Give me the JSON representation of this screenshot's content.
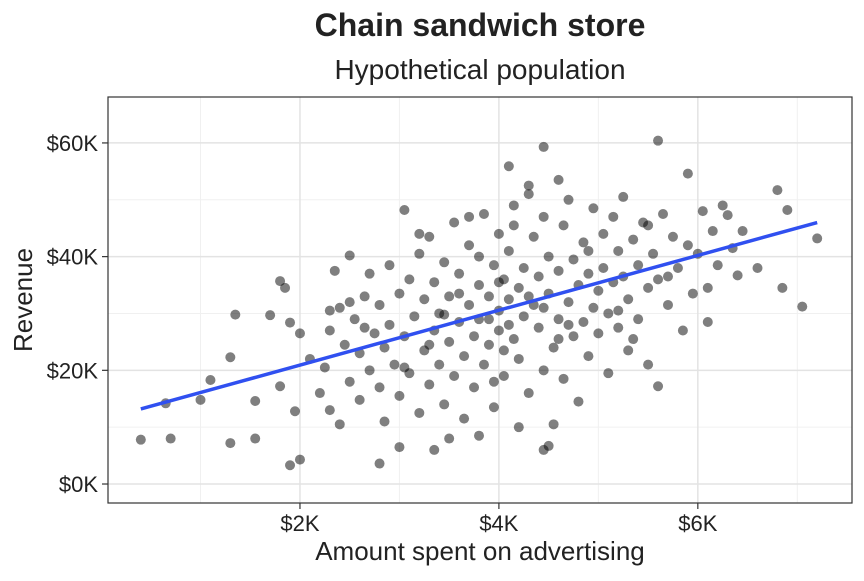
{
  "chart_data": {
    "type": "scatter",
    "title": "Chain sandwich store",
    "subtitle": "Hypothetical population",
    "xlabel": "Amount spent on advertising",
    "ylabel": "Revenue",
    "color": "#000000",
    "grid": true,
    "xlim": [
      70,
      7550
    ],
    "ylim": [
      -3340,
      68080
    ],
    "xticks": [
      {
        "value": 2000,
        "label": "$2K"
      },
      {
        "value": 4000,
        "label": "$4K"
      },
      {
        "value": 6000,
        "label": "$6K"
      }
    ],
    "yticks": [
      {
        "value": 0,
        "label": "$0K"
      },
      {
        "value": 20000,
        "label": "$20K"
      },
      {
        "value": 40000,
        "label": "$40K"
      },
      {
        "value": 60000,
        "label": "$60K"
      }
    ],
    "xminor": [
      1000,
      3000,
      5000,
      7000
    ],
    "yminor": [
      10000,
      30000,
      50000
    ],
    "x": [
      400,
      700,
      650,
      1000,
      1100,
      1300,
      1300,
      1350,
      1550,
      1550,
      1700,
      1800,
      1850,
      1800,
      1900,
      2000,
      1950,
      1900,
      5600,
      4450,
      4100,
      6800,
      5900,
      7200,
      7050,
      6900,
      4450,
      4500,
      2800,
      3000,
      3350,
      3800,
      2100,
      2200,
      2250,
      2300,
      2300,
      2350,
      2400,
      2400,
      2450,
      2500,
      2500,
      2550,
      2600,
      2600,
      2650,
      2700,
      2700,
      2750,
      2800,
      2800,
      2850,
      2850,
      2900,
      2900,
      2950,
      3000,
      3000,
      3050,
      3050,
      3100,
      3100,
      3150,
      3200,
      3200,
      3250,
      3250,
      3300,
      3300,
      3350,
      3350,
      3400,
      3400,
      3450,
      3450,
      3500,
      3500,
      3550,
      3550,
      3600,
      3600,
      3650,
      3650,
      3700,
      3700,
      3750,
      3750,
      3800,
      3800,
      3850,
      3850,
      3900,
      3900,
      3950,
      3950,
      4000,
      4000,
      4000,
      4050,
      4050,
      4100,
      4100,
      4150,
      4150,
      4200,
      4200,
      4250,
      4250,
      4300,
      4300,
      4350,
      4350,
      4400,
      4400,
      4450,
      4450,
      4500,
      4500,
      4550,
      4550,
      4600,
      4600,
      4650,
      4650,
      4700,
      4700,
      4750,
      4750,
      4800,
      4800,
      4850,
      4850,
      4900,
      4900,
      4950,
      4950,
      5000,
      5000,
      5050,
      5050,
      5100,
      5100,
      5150,
      5150,
      5200,
      5200,
      5250,
      5250,
      5300,
      5300,
      5350,
      5400,
      5400,
      5450,
      5500,
      5500,
      5550,
      5600,
      5600,
      5650,
      5700,
      5750,
      5800,
      5850,
      5900,
      5950,
      6000,
      6050,
      6100,
      6150,
      6200,
      6250,
      6300,
      6350,
      6400,
      6450,
      6600,
      6850,
      6100,
      5500,
      4300,
      4600,
      3700,
      3200,
      2300,
      2000,
      2500,
      3500,
      4200,
      3900,
      4100,
      4300,
      4000,
      3600,
      4450,
      4700,
      3300,
      3800,
      4900,
      5200,
      3050,
      2650,
      4600,
      4050,
      3950,
      5350,
      5700,
      3450,
      4150
    ],
    "values": [
      7800,
      8000,
      14200,
      14800,
      18300,
      7200,
      22300,
      29800,
      8000,
      14600,
      29700,
      35700,
      34500,
      17200,
      3300,
      4300,
      12800,
      28400,
      60400,
      59300,
      55900,
      51700,
      54600,
      43200,
      31200,
      48200,
      6000,
      6700,
      3600,
      6500,
      6000,
      8500,
      22000,
      16000,
      20500,
      13000,
      27000,
      37500,
      31000,
      10500,
      24500,
      18000,
      40200,
      29000,
      23000,
      14800,
      33000,
      37000,
      20000,
      26500,
      17000,
      31500,
      11000,
      24000,
      38500,
      28000,
      21000,
      15500,
      33500,
      48200,
      26000,
      19500,
      36000,
      29500,
      12500,
      40500,
      23500,
      32500,
      17500,
      43500,
      27000,
      35500,
      21000,
      30000,
      14000,
      39000,
      25000,
      33000,
      46000,
      19000,
      28500,
      37000,
      22500,
      11500,
      31500,
      42000,
      26000,
      17000,
      35000,
      29000,
      47500,
      21000,
      33000,
      24500,
      38500,
      13500,
      30500,
      44000,
      27000,
      36000,
      19000,
      32500,
      41000,
      25500,
      49000,
      34500,
      22000,
      29500,
      38000,
      16000,
      51000,
      31500,
      43500,
      27500,
      36500,
      20000,
      47000,
      33500,
      40000,
      24000,
      10500,
      37500,
      29000,
      45500,
      18500,
      32000,
      50000,
      26000,
      39500,
      35000,
      14500,
      42500,
      28500,
      37000,
      22500,
      48500,
      31000,
      34000,
      26500,
      44000,
      38000,
      30000,
      19500,
      47000,
      35500,
      41000,
      27500,
      36500,
      50500,
      32500,
      23500,
      43000,
      38500,
      29000,
      46000,
      34500,
      21000,
      40500,
      17200,
      36000,
      47500,
      31500,
      43500,
      38000,
      27000,
      42000,
      33500,
      40500,
      48000,
      34500,
      44500,
      38500,
      49000,
      47300,
      41500,
      36700,
      44500,
      38000,
      34500,
      28500,
      45500,
      52500,
      53500,
      47000,
      44000,
      30500,
      26500,
      32000,
      8000,
      10000,
      29000,
      28000,
      33000,
      35500,
      33500,
      31000,
      28000,
      24500,
      40000,
      41000,
      30500,
      20500,
      27500,
      25500,
      23500,
      18000,
      25500,
      36500,
      29800,
      45500
    ],
    "fit": {
      "color": "#3050f0",
      "x": [
        400,
        7200
      ],
      "values": [
        13200,
        46000
      ]
    }
  }
}
